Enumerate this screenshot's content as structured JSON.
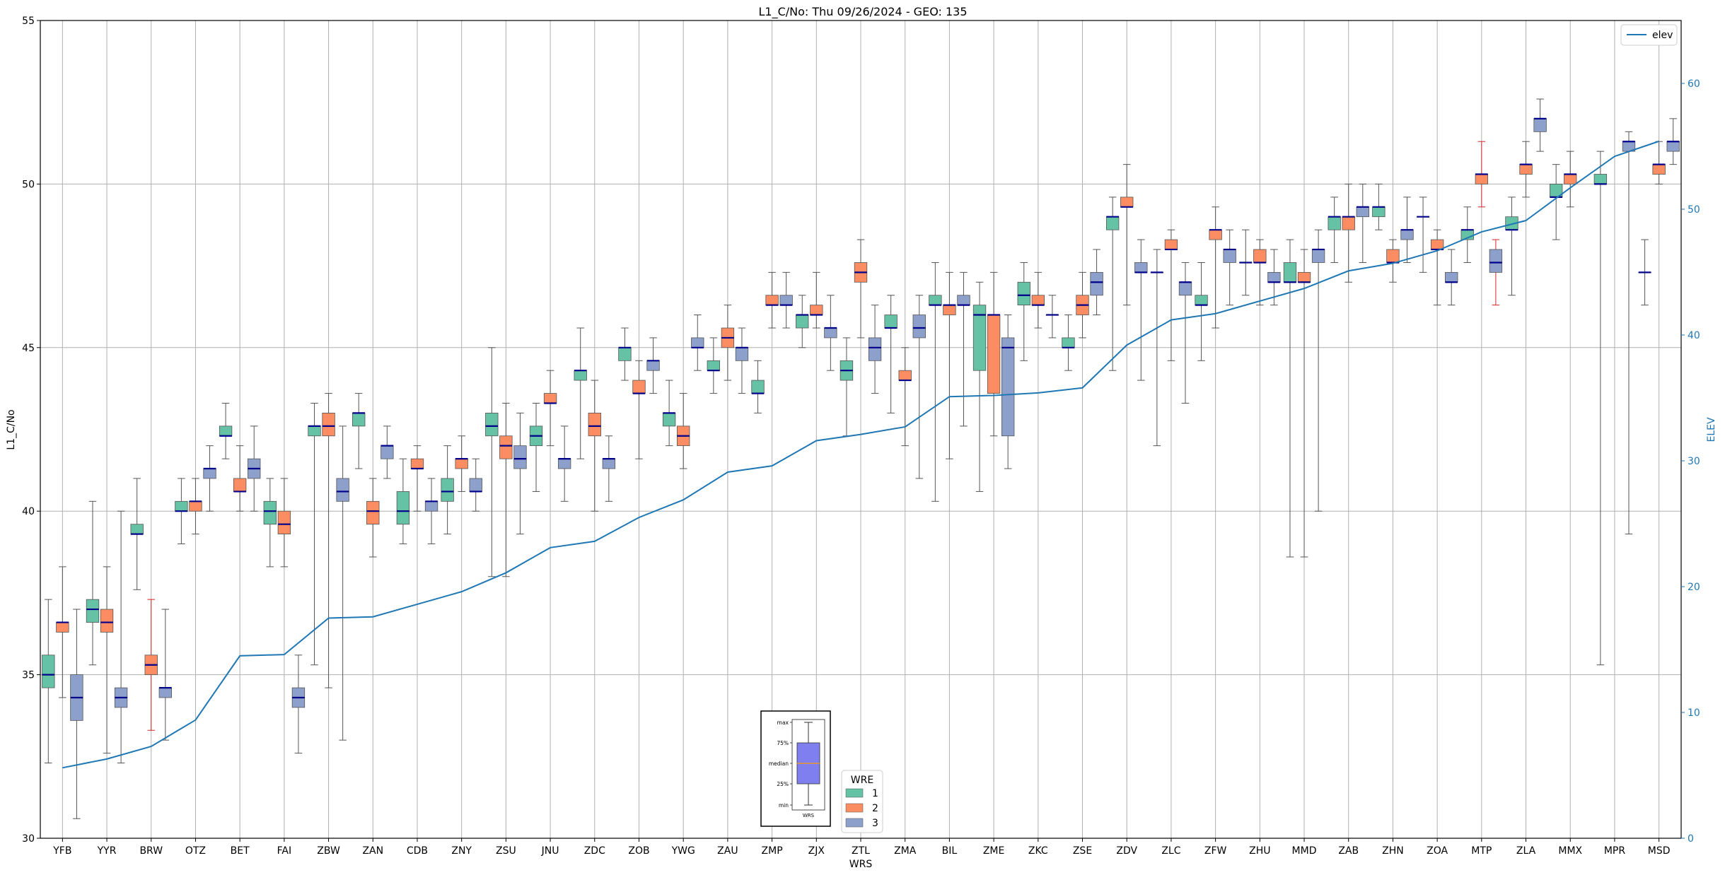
{
  "chart_data": {
    "type": "box",
    "title": "L1_C/No: Thu 09/26/2024 - GEO: 135",
    "xlabel": "WRS",
    "ylabel": "L1_C/No",
    "y2label": "ELEV",
    "ylim": [
      30,
      55
    ],
    "y2lim": [
      0,
      65
    ],
    "yticks": [
      30,
      35,
      40,
      45,
      50,
      55
    ],
    "y2ticks": [
      0,
      10,
      20,
      30,
      40,
      50,
      60
    ],
    "grid": true,
    "colors": {
      "wre1": "#66c2a5",
      "wre2": "#fc8d62",
      "wre3": "#8da0cb",
      "elev": "#1f77b4",
      "median": "#00008b",
      "whisker": "#555555",
      "whisker_alt": "#d62728"
    },
    "categories": [
      "YFB",
      "YYR",
      "BRW",
      "OTZ",
      "BET",
      "FAI",
      "ZBW",
      "ZAN",
      "CDB",
      "ZNY",
      "ZSU",
      "JNU",
      "ZDC",
      "ZOB",
      "YWG",
      "ZAU",
      "ZMP",
      "ZJX",
      "ZTL",
      "ZMA",
      "BIL",
      "ZME",
      "ZKC",
      "ZSE",
      "ZDV",
      "ZLC",
      "ZFW",
      "ZHU",
      "MMD",
      "ZAB",
      "ZHN",
      "ZOA",
      "MTP",
      "ZLA",
      "MMX",
      "MPR",
      "MSD"
    ],
    "legend": {
      "title": "WRE",
      "items": [
        "1",
        "2",
        "3"
      ],
      "elev_label": "elev"
    },
    "legend_placement": [
      "lower-center",
      "top-right"
    ],
    "elev_series": {
      "name": "elev",
      "values": [
        5.6,
        6.3,
        7.3,
        9.4,
        14.5,
        14.6,
        17.5,
        17.6,
        18.6,
        19.6,
        21.1,
        23.1,
        23.6,
        25.5,
        26.9,
        29.1,
        29.6,
        31.6,
        32.1,
        32.7,
        35.1,
        35.2,
        35.4,
        35.8,
        39.2,
        41.2,
        41.7,
        42.7,
        43.7,
        45.1,
        45.7,
        46.7,
        48.2,
        49.1,
        51.7,
        54.2,
        55.4
      ]
    },
    "box_series": [
      {
        "wre": "1",
        "stats": [
          [
            32.3,
            34.6,
            35.0,
            35.6,
            37.3
          ],
          [
            35.3,
            36.6,
            37.0,
            37.3,
            40.3
          ],
          [
            37.6,
            39.3,
            39.3,
            39.6,
            41.0
          ],
          [
            39.0,
            40.0,
            40.0,
            40.3,
            41.0
          ],
          [
            41.6,
            42.3,
            42.3,
            42.6,
            43.3
          ],
          [
            38.3,
            39.6,
            40.0,
            40.3,
            41.0
          ],
          [
            35.3,
            42.3,
            42.6,
            42.6,
            43.3
          ],
          [
            41.3,
            42.6,
            43.0,
            43.0,
            43.6
          ],
          [
            39.0,
            39.6,
            40.0,
            40.6,
            41.6
          ],
          [
            39.3,
            40.3,
            40.6,
            41.0,
            42.0
          ],
          [
            38.0,
            42.3,
            42.6,
            43.0,
            45.0
          ],
          [
            40.6,
            42.0,
            42.3,
            42.6,
            43.3
          ],
          [
            41.6,
            44.0,
            44.3,
            44.3,
            45.6
          ],
          [
            44.0,
            44.6,
            45.0,
            45.0,
            45.6
          ],
          [
            42.0,
            42.6,
            43.0,
            43.0,
            44.0
          ],
          [
            43.6,
            44.3,
            44.3,
            44.6,
            45.3
          ],
          [
            43.0,
            43.6,
            43.6,
            44.0,
            44.6
          ],
          [
            45.0,
            45.6,
            46.0,
            46.0,
            46.6
          ],
          [
            42.3,
            44.0,
            44.3,
            44.6,
            45.3
          ],
          [
            43.0,
            45.6,
            45.6,
            46.0,
            46.6
          ],
          [
            40.3,
            46.3,
            46.3,
            46.6,
            47.6
          ],
          [
            40.6,
            44.3,
            46.0,
            46.3,
            47.0
          ],
          [
            44.6,
            46.3,
            46.6,
            47.0,
            47.6
          ],
          [
            44.3,
            45.0,
            45.0,
            45.3,
            46.0
          ],
          [
            44.3,
            48.6,
            49.0,
            49.0,
            49.6
          ],
          [
            42.0,
            47.3,
            47.3,
            47.3,
            48.0
          ],
          [
            44.6,
            46.3,
            46.3,
            46.6,
            47.6
          ],
          [
            46.6,
            47.6,
            47.6,
            47.6,
            48.6
          ],
          [
            38.6,
            47.0,
            47.0,
            47.6,
            48.3
          ],
          [
            47.6,
            48.6,
            49.0,
            49.0,
            49.6
          ],
          [
            48.6,
            49.0,
            49.3,
            49.3,
            50.0
          ],
          [
            47.3,
            49.0,
            49.0,
            49.0,
            49.6
          ],
          [
            47.6,
            48.3,
            48.6,
            48.6,
            49.3
          ],
          [
            46.6,
            48.6,
            48.6,
            49.0,
            49.6
          ],
          [
            48.3,
            49.6,
            49.6,
            50.0,
            50.6
          ],
          [
            35.3,
            50.0,
            50.0,
            50.3,
            51.0
          ],
          [
            46.3,
            47.3,
            47.3,
            47.3,
            48.3
          ]
        ]
      },
      {
        "wre": "2",
        "stats": [
          [
            34.3,
            36.3,
            36.6,
            36.6,
            38.3
          ],
          [
            32.6,
            36.3,
            36.6,
            37.0,
            38.3
          ],
          [
            33.3,
            35.0,
            35.3,
            35.6,
            37.3
          ],
          [
            39.3,
            40.0,
            40.3,
            40.3,
            41.0
          ],
          [
            40.0,
            40.6,
            40.6,
            41.0,
            42.0
          ],
          [
            38.3,
            39.3,
            39.6,
            40.0,
            41.0
          ],
          [
            34.6,
            42.3,
            42.6,
            43.0,
            43.6
          ],
          [
            38.6,
            39.6,
            40.0,
            40.3,
            41.0
          ],
          [
            40.0,
            41.3,
            41.3,
            41.6,
            42.0
          ],
          [
            40.6,
            41.3,
            41.6,
            41.6,
            42.3
          ],
          [
            38.0,
            41.6,
            42.0,
            42.3,
            43.3
          ],
          [
            42.0,
            43.3,
            43.3,
            43.6,
            44.3
          ],
          [
            40.0,
            42.3,
            42.6,
            43.0,
            44.0
          ],
          [
            41.6,
            43.6,
            43.6,
            44.0,
            44.6
          ],
          [
            41.3,
            42.0,
            42.3,
            42.6,
            43.6
          ],
          [
            44.0,
            45.0,
            45.3,
            45.6,
            46.3
          ],
          [
            45.6,
            46.3,
            46.3,
            46.6,
            47.3
          ],
          [
            45.6,
            46.0,
            46.0,
            46.3,
            47.3
          ],
          [
            45.3,
            47.0,
            47.3,
            47.6,
            48.3
          ],
          [
            42.0,
            44.0,
            44.0,
            44.3,
            45.0
          ],
          [
            41.6,
            46.0,
            46.3,
            46.3,
            47.3
          ],
          [
            42.3,
            43.6,
            46.0,
            46.0,
            47.3
          ],
          [
            45.6,
            46.3,
            46.3,
            46.6,
            47.3
          ],
          [
            45.3,
            46.0,
            46.3,
            46.6,
            47.3
          ],
          [
            46.3,
            49.3,
            49.3,
            49.6,
            50.6
          ],
          [
            44.6,
            48.0,
            48.0,
            48.3,
            48.6
          ],
          [
            45.6,
            48.3,
            48.6,
            48.6,
            49.3
          ],
          [
            46.3,
            47.6,
            47.6,
            48.0,
            48.3
          ],
          [
            38.6,
            47.0,
            47.0,
            47.3,
            48.0
          ],
          [
            47.0,
            48.6,
            49.0,
            49.0,
            50.0
          ],
          [
            47.0,
            47.6,
            47.6,
            48.0,
            48.3
          ],
          [
            46.3,
            48.0,
            48.0,
            48.3,
            48.6
          ],
          [
            49.3,
            50.0,
            50.3,
            50.3,
            51.3
          ],
          [
            49.6,
            50.3,
            50.6,
            50.6,
            51.3
          ],
          [
            49.3,
            50.0,
            50.3,
            50.3,
            51.0
          ],
          [
            null,
            null,
            null,
            null,
            null
          ],
          [
            50.0,
            50.3,
            50.6,
            50.6,
            51.3
          ]
        ]
      },
      {
        "wre": "3",
        "stats": [
          [
            30.6,
            33.6,
            34.3,
            35.0,
            37.0
          ],
          [
            32.3,
            34.0,
            34.3,
            34.6,
            40.0
          ],
          [
            33.0,
            34.3,
            34.6,
            34.6,
            37.0
          ],
          [
            40.0,
            41.0,
            41.3,
            41.3,
            42.0
          ],
          [
            40.0,
            41.0,
            41.3,
            41.6,
            42.6
          ],
          [
            32.6,
            34.0,
            34.3,
            34.6,
            35.6
          ],
          [
            33.0,
            40.3,
            40.6,
            41.0,
            42.6
          ],
          [
            41.0,
            41.6,
            42.0,
            42.0,
            42.6
          ],
          [
            39.0,
            40.0,
            40.3,
            40.3,
            41.0
          ],
          [
            40.0,
            40.6,
            40.6,
            41.0,
            41.6
          ],
          [
            39.3,
            41.3,
            41.6,
            42.0,
            43.0
          ],
          [
            40.3,
            41.3,
            41.6,
            41.6,
            42.6
          ],
          [
            40.3,
            41.3,
            41.6,
            41.6,
            42.3
          ],
          [
            43.6,
            44.3,
            44.6,
            44.6,
            45.3
          ],
          [
            44.3,
            45.0,
            45.0,
            45.3,
            46.0
          ],
          [
            43.6,
            44.6,
            45.0,
            45.0,
            45.6
          ],
          [
            45.6,
            46.3,
            46.3,
            46.6,
            47.3
          ],
          [
            44.3,
            45.3,
            45.6,
            45.6,
            46.6
          ],
          [
            43.6,
            44.6,
            45.0,
            45.3,
            46.3
          ],
          [
            41.0,
            45.3,
            45.6,
            46.0,
            46.6
          ],
          [
            42.6,
            46.3,
            46.3,
            46.6,
            47.3
          ],
          [
            41.3,
            42.3,
            45.0,
            45.3,
            46.0
          ],
          [
            45.3,
            46.0,
            46.0,
            46.0,
            46.6
          ],
          [
            46.0,
            46.6,
            47.0,
            47.3,
            48.0
          ],
          [
            44.0,
            47.3,
            47.3,
            47.6,
            48.3
          ],
          [
            43.3,
            46.6,
            47.0,
            47.0,
            47.6
          ],
          [
            46.3,
            47.6,
            48.0,
            48.0,
            48.6
          ],
          [
            46.3,
            47.0,
            47.0,
            47.3,
            48.0
          ],
          [
            40.0,
            47.6,
            48.0,
            48.0,
            48.6
          ],
          [
            47.6,
            49.0,
            49.3,
            49.3,
            50.0
          ],
          [
            47.6,
            48.3,
            48.6,
            48.6,
            49.6
          ],
          [
            46.3,
            47.0,
            47.0,
            47.3,
            48.0
          ],
          [
            46.3,
            47.3,
            47.6,
            48.0,
            48.3
          ],
          [
            51.0,
            51.6,
            52.0,
            52.0,
            52.6
          ],
          [
            null,
            null,
            null,
            null,
            null
          ],
          [
            39.3,
            51.0,
            51.3,
            51.3,
            51.6
          ],
          [
            50.6,
            51.0,
            51.3,
            51.3,
            52.0
          ]
        ]
      }
    ],
    "inset_legend": {
      "labels": [
        "max",
        "75%",
        "median",
        "25%",
        "min"
      ],
      "xlabel": "WRS"
    }
  }
}
